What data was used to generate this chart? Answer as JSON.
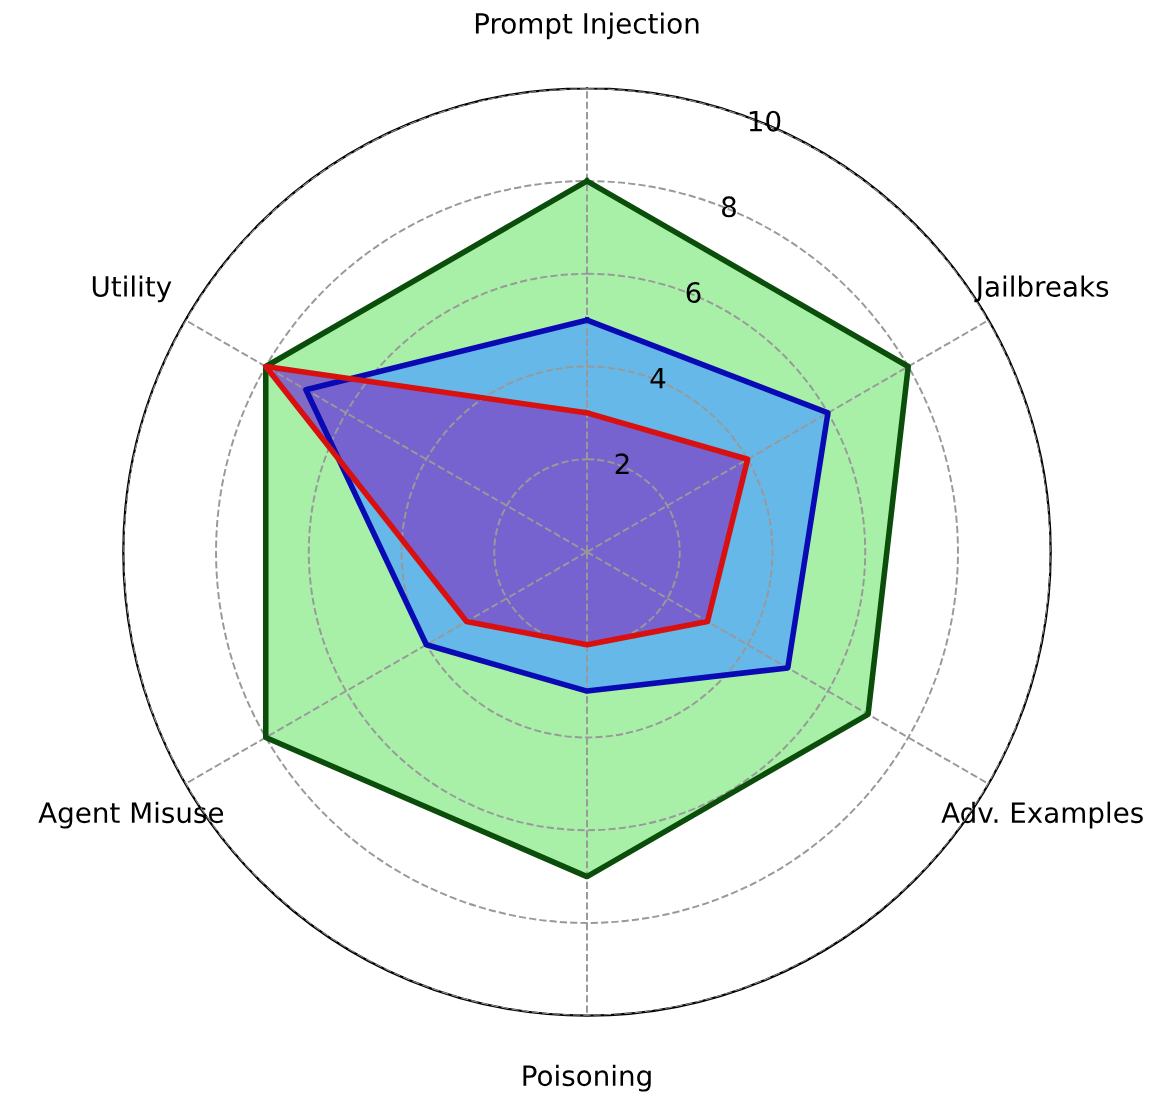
{
  "chart_data": {
    "type": "radar",
    "categories": [
      "Prompt Injection",
      "Jailbreaks",
      "Adv. Examples",
      "Poisoning",
      "Agent Misuse",
      "Utility"
    ],
    "series": [
      {
        "color": "#0b4d0b",
        "values": [
          8,
          8,
          7,
          7,
          8,
          8
        ]
      },
      {
        "color": "#0a0ab4",
        "values": [
          5,
          6,
          5,
          3,
          4,
          7
        ]
      },
      {
        "color": "#d81010",
        "values": [
          3,
          4,
          3,
          2,
          3,
          8
        ]
      }
    ],
    "ylim": [
      0,
      10
    ],
    "yticks": [
      2,
      4,
      6,
      8,
      10
    ],
    "grid": true
  }
}
